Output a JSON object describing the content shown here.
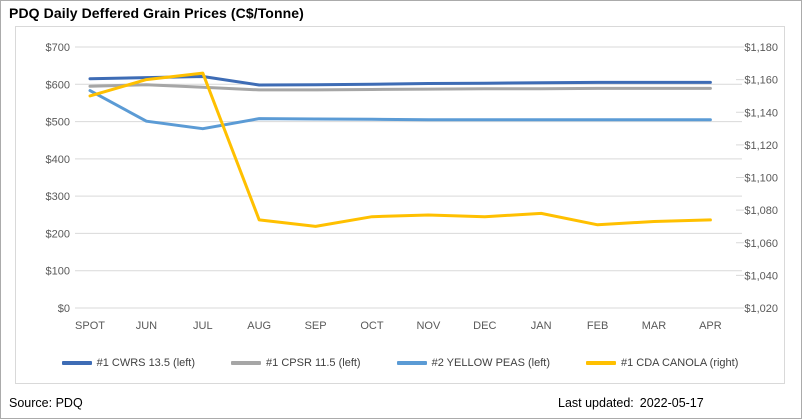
{
  "title": "PDQ Daily Deffered Grain Prices (C$/Tonne)",
  "footer": {
    "source_label": "Source:",
    "source_value": "PDQ",
    "updated_label": "Last updated:",
    "updated_value": "2022-05-17"
  },
  "colors": {
    "gridline": "#d9d9d9",
    "chart_border": "#d9d9d9",
    "axis_text": "#595959",
    "legend_text": "#404040",
    "title_text": "#000000"
  },
  "chart_data": {
    "type": "line",
    "title": "PDQ Daily Deffered Grain Prices (C$/Tonne)",
    "categories": [
      "SPOT",
      "JUN",
      "JUL",
      "AUG",
      "SEP",
      "OCT",
      "NOV",
      "DEC",
      "JAN",
      "FEB",
      "MAR",
      "APR"
    ],
    "series": [
      {
        "name": "#1 CWRS 13.5 (left)",
        "axis": "left",
        "color": "#3e6cb5",
        "values": [
          615,
          618,
          621,
          598,
          599,
          600,
          602,
          603,
          604,
          605,
          605,
          605
        ]
      },
      {
        "name": "#1 CPSR 11.5 (left)",
        "axis": "left",
        "color": "#a6a6a6",
        "values": [
          595,
          599,
          592,
          585,
          585,
          586,
          587,
          588,
          588,
          589,
          589,
          589
        ]
      },
      {
        "name": "#2 YELLOW PEAS (left)",
        "axis": "left",
        "color": "#5b9bd5",
        "values": [
          583,
          501,
          481,
          508,
          507,
          506,
          505,
          505,
          505,
          505,
          505,
          505
        ]
      },
      {
        "name": "#1 CDA CANOLA (right)",
        "axis": "right",
        "color": "#ffc000",
        "values": [
          1150,
          1160,
          1164,
          1074,
          1070,
          1076,
          1077,
          1076,
          1078,
          1071,
          1073,
          1074
        ]
      }
    ],
    "left_axis": {
      "min": 0,
      "max": 700,
      "step": 100
    },
    "right_axis": {
      "min": 1020,
      "max": 1180,
      "step": 20
    },
    "left_tick_labels": [
      "$700",
      "$600",
      "$500",
      "$400",
      "$300",
      "$200",
      "$100",
      "$0"
    ],
    "right_tick_labels": [
      "$1,180",
      "$1,160",
      "$1,140",
      "$1,120",
      "$1,100",
      "$1,080",
      "$1,060",
      "$1,040",
      "$1,020"
    ],
    "grid": true,
    "legend_position": "bottom",
    "xlabel": "",
    "ylabel": ""
  }
}
